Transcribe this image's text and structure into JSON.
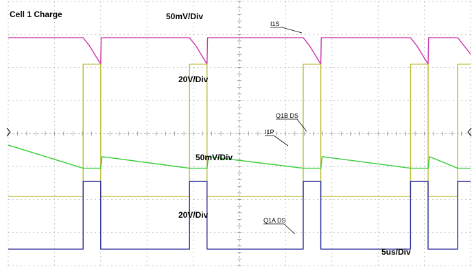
{
  "chart_data": {
    "type": "line",
    "title": "Cell 1 Charge",
    "time_base": "5us/Div",
    "grid": true,
    "x_unit": "us",
    "x_divisions": 10,
    "y_divisions": 8,
    "xlim": [
      0,
      50
    ],
    "series": [
      {
        "name": "I1S",
        "scale": "50mV/Div",
        "color": "#cc33aa",
        "baseline_div": 1.1,
        "points": [
          [
            0,
            1.1
          ],
          [
            8.1,
            1.1
          ],
          [
            8.8,
            1.35
          ],
          [
            10.0,
            1.9
          ],
          [
            10.05,
            1.1
          ],
          [
            19.6,
            1.1
          ],
          [
            20.3,
            1.35
          ],
          [
            21.5,
            1.9
          ],
          [
            21.55,
            1.1
          ],
          [
            31.9,
            1.1
          ],
          [
            32.6,
            1.35
          ],
          [
            33.8,
            1.9
          ],
          [
            33.85,
            1.1
          ],
          [
            43.5,
            1.1
          ],
          [
            44.2,
            1.35
          ],
          [
            45.4,
            1.9
          ],
          [
            45.45,
            1.1
          ],
          [
            48.6,
            1.1
          ],
          [
            49.3,
            1.35
          ],
          [
            50,
            1.6
          ]
        ]
      },
      {
        "name": "Q1B DS",
        "scale": "20V/Div",
        "color": "#bbbb33",
        "points": [
          [
            0,
            5.9
          ],
          [
            8.1,
            5.9
          ],
          [
            8.1,
            1.9
          ],
          [
            10.0,
            1.9
          ],
          [
            10.0,
            5.9
          ],
          [
            19.6,
            5.9
          ],
          [
            19.6,
            1.9
          ],
          [
            21.5,
            1.9
          ],
          [
            21.5,
            5.9
          ],
          [
            31.9,
            5.9
          ],
          [
            31.9,
            1.9
          ],
          [
            33.8,
            1.9
          ],
          [
            33.8,
            5.9
          ],
          [
            43.5,
            5.9
          ],
          [
            43.5,
            1.9
          ],
          [
            45.4,
            1.9
          ],
          [
            45.4,
            5.9
          ],
          [
            48.6,
            5.9
          ],
          [
            48.6,
            1.9
          ],
          [
            50,
            1.9
          ]
        ]
      },
      {
        "name": "I1P",
        "scale": "50mV/Div",
        "color": "#33cc33",
        "points": [
          [
            0,
            4.35
          ],
          [
            8.1,
            5.05
          ],
          [
            10.0,
            5.05
          ],
          [
            10.15,
            4.7
          ],
          [
            19.6,
            5.05
          ],
          [
            21.5,
            5.05
          ],
          [
            21.65,
            4.7
          ],
          [
            31.9,
            5.05
          ],
          [
            33.8,
            5.05
          ],
          [
            33.95,
            4.7
          ],
          [
            43.5,
            5.05
          ],
          [
            45.4,
            5.05
          ],
          [
            45.55,
            4.7
          ],
          [
            48.6,
            5.05
          ],
          [
            50,
            5.05
          ]
        ]
      },
      {
        "name": "Q1A DS",
        "scale": "20V/Div",
        "color": "#2a2a99",
        "points": [
          [
            0,
            7.5
          ],
          [
            8.1,
            7.5
          ],
          [
            8.1,
            5.45
          ],
          [
            10.0,
            5.45
          ],
          [
            10.0,
            7.5
          ],
          [
            19.6,
            7.5
          ],
          [
            19.6,
            5.45
          ],
          [
            21.5,
            5.45
          ],
          [
            21.5,
            7.5
          ],
          [
            31.9,
            7.5
          ],
          [
            31.9,
            5.45
          ],
          [
            33.8,
            5.45
          ],
          [
            33.8,
            7.5
          ],
          [
            43.5,
            7.5
          ],
          [
            43.5,
            5.45
          ],
          [
            45.4,
            5.45
          ],
          [
            45.4,
            7.5
          ],
          [
            48.6,
            7.5
          ],
          [
            48.6,
            5.45
          ],
          [
            50,
            5.45
          ]
        ]
      }
    ],
    "annotations": [
      {
        "text": "50mV/Div",
        "near": "I1S"
      },
      {
        "text": "20V/Div",
        "near": "Q1B DS"
      },
      {
        "text": "50mV/Div",
        "near": "I1P"
      },
      {
        "text": "20V/Div",
        "near": "Q1A DS"
      },
      {
        "text": "I1S"
      },
      {
        "text": "Q1B DS"
      },
      {
        "text": "I1P"
      },
      {
        "text": "Q1A DS"
      },
      {
        "text": "5us/Div"
      }
    ]
  }
}
